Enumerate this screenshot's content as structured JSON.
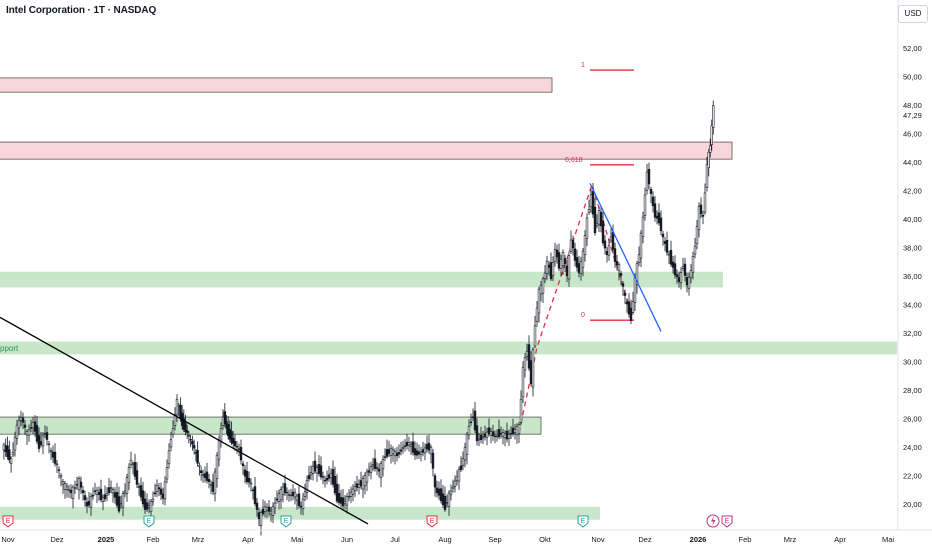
{
  "header": {
    "title": "Intel Corporation · 1T · NASDAQ",
    "currency": "USD"
  },
  "colors": {
    "resistance_fill": "#f9d6da",
    "resistance_stroke": "#555555",
    "support_fill": "#c8e6c9",
    "candle": "#131722",
    "fib_red": "#e0313e",
    "downtrend_blue": "#2962ff",
    "trendline": "#000000",
    "support_text": "#2e8b57",
    "earnings_red": "#e0313e",
    "earnings_green": "#26a69a",
    "dividend_purple": "#c13584"
  },
  "chart_data": {
    "type": "candlestick",
    "title": "Intel Corporation · 1T · NASDAQ",
    "y_axis": {
      "ticks": [
        "20,00",
        "22,00",
        "24,00",
        "26,00",
        "28,00",
        "30,00",
        "32,00",
        "34,00",
        "36,00",
        "38,00",
        "40,00",
        "42,00",
        "44,00",
        "46,00",
        "48,00",
        "50,00",
        "52,00"
      ],
      "last_price_label": "47,29",
      "range": [
        19.0,
        54.0
      ]
    },
    "x_axis": {
      "ticks": [
        "Nov",
        "Dez",
        "2025",
        "Feb",
        "Mrz",
        "Apr",
        "Mai",
        "Jun",
        "Jul",
        "Aug",
        "Sep",
        "Okt",
        "Nov",
        "Dez",
        "2026",
        "Feb",
        "Mrz",
        "Apr",
        "Mai"
      ],
      "tick_x": [
        8,
        57,
        106,
        153,
        198,
        248,
        297,
        347,
        395,
        445,
        495,
        545,
        598,
        645,
        698,
        745,
        790,
        840,
        888
      ],
      "bold": [
        "2025",
        "2026"
      ]
    },
    "zones": [
      {
        "kind": "resistance",
        "x_from": 0,
        "x_to": 552,
        "low": 48.9,
        "high": 49.9
      },
      {
        "kind": "resistance",
        "x_from": 0,
        "x_to": 732,
        "low": 44.2,
        "high": 45.4
      },
      {
        "kind": "support",
        "x_from": 0,
        "x_to": 723,
        "low": 35.2,
        "high": 36.3
      },
      {
        "kind": "support",
        "x_from": 0,
        "x_to": 897,
        "low": 30.5,
        "high": 31.4
      },
      {
        "kind": "support_outlined",
        "x_from": 0,
        "x_to": 541,
        "low": 24.9,
        "high": 26.1
      },
      {
        "kind": "support",
        "x_from": 0,
        "x_to": 600,
        "low": 18.9,
        "high": 19.8
      }
    ],
    "support_label": "pport",
    "fib": {
      "levels": [
        {
          "label": "1",
          "value": 50.45
        },
        {
          "label": "0,618",
          "value": 43.8
        },
        {
          "label": "0",
          "value": 32.9
        }
      ],
      "dashed_path": [
        [
          519,
          25.0
        ],
        [
          537,
          31.0
        ],
        [
          592,
          42.4
        ],
        [
          632,
          33.2
        ]
      ]
    },
    "lines": [
      {
        "name": "long-downtrend",
        "from": [
          0,
          33.1
        ],
        "to": [
          368,
          18.6
        ]
      },
      {
        "name": "short-downtrend",
        "from": [
          590,
          42.5
        ],
        "to": [
          661,
          32.1
        ]
      }
    ],
    "events": [
      {
        "type": "earnings",
        "x": 8,
        "color": "red"
      },
      {
        "type": "earnings",
        "x": 149,
        "color": "green"
      },
      {
        "type": "earnings",
        "x": 286,
        "color": "green"
      },
      {
        "type": "earnings",
        "x": 432,
        "color": "red"
      },
      {
        "type": "earnings",
        "x": 583,
        "color": "green"
      },
      {
        "type": "dividend",
        "x": 713,
        "color": "purple"
      },
      {
        "type": "earnings",
        "x": 727,
        "color": "purple"
      }
    ],
    "price_path": [
      [
        3,
        24.2
      ],
      [
        12,
        23.0
      ],
      [
        18,
        25.5
      ],
      [
        22,
        26.1
      ],
      [
        28,
        24.9
      ],
      [
        34,
        25.7
      ],
      [
        40,
        24.0
      ],
      [
        46,
        25.0
      ],
      [
        52,
        23.6
      ],
      [
        58,
        22.7
      ],
      [
        64,
        21.4
      ],
      [
        72,
        20.8
      ],
      [
        80,
        21.6
      ],
      [
        88,
        19.8
      ],
      [
        96,
        21.0
      ],
      [
        104,
        20.3
      ],
      [
        112,
        21.2
      ],
      [
        120,
        19.7
      ],
      [
        126,
        21.0
      ],
      [
        132,
        23.2
      ],
      [
        138,
        21.5
      ],
      [
        146,
        19.7
      ],
      [
        152,
        20.0
      ],
      [
        158,
        21.3
      ],
      [
        164,
        20.4
      ],
      [
        170,
        23.8
      ],
      [
        174,
        25.4
      ],
      [
        178,
        27.3
      ],
      [
        183,
        25.6
      ],
      [
        188,
        25.0
      ],
      [
        195,
        23.9
      ],
      [
        202,
        22.1
      ],
      [
        208,
        21.8
      ],
      [
        214,
        21.0
      ],
      [
        220,
        24.4
      ],
      [
        224,
        26.2
      ],
      [
        229,
        24.9
      ],
      [
        234,
        24.3
      ],
      [
        240,
        23.8
      ],
      [
        246,
        21.9
      ],
      [
        252,
        21.4
      ],
      [
        256,
        20.2
      ],
      [
        260,
        18.9
      ],
      [
        266,
        19.8
      ],
      [
        272,
        19.4
      ],
      [
        278,
        20.4
      ],
      [
        284,
        21.1
      ],
      [
        290,
        20.6
      ],
      [
        296,
        20.7
      ],
      [
        302,
        19.7
      ],
      [
        308,
        21.6
      ],
      [
        314,
        22.6
      ],
      [
        320,
        22.3
      ],
      [
        326,
        21.6
      ],
      [
        332,
        22.1
      ],
      [
        338,
        20.4
      ],
      [
        344,
        20.0
      ],
      [
        350,
        20.6
      ],
      [
        356,
        21.2
      ],
      [
        362,
        21.4
      ],
      [
        368,
        22.1
      ],
      [
        374,
        22.8
      ],
      [
        380,
        22.3
      ],
      [
        386,
        23.4
      ],
      [
        392,
        23.8
      ],
      [
        398,
        23.4
      ],
      [
        404,
        24.0
      ],
      [
        410,
        24.3
      ],
      [
        416,
        23.5
      ],
      [
        422,
        23.6
      ],
      [
        428,
        24.0
      ],
      [
        432,
        23.8
      ],
      [
        436,
        21.0
      ],
      [
        440,
        20.7
      ],
      [
        446,
        19.8
      ],
      [
        450,
        20.6
      ],
      [
        456,
        21.6
      ],
      [
        462,
        22.6
      ],
      [
        466,
        23.9
      ],
      [
        470,
        25.5
      ],
      [
        474,
        26.2
      ],
      [
        478,
        24.5
      ],
      [
        484,
        24.7
      ],
      [
        490,
        25.1
      ],
      [
        496,
        24.7
      ],
      [
        502,
        25.0
      ],
      [
        508,
        24.7
      ],
      [
        514,
        25.1
      ],
      [
        520,
        25.4
      ],
      [
        524,
        29.6
      ],
      [
        528,
        30.8
      ],
      [
        532,
        28.6
      ],
      [
        536,
        32.7
      ],
      [
        540,
        34.9
      ],
      [
        544,
        35.6
      ],
      [
        548,
        37.0
      ],
      [
        552,
        36.0
      ],
      [
        556,
        37.9
      ],
      [
        560,
        36.7
      ],
      [
        564,
        37.5
      ],
      [
        568,
        36.0
      ],
      [
        572,
        38.7
      ],
      [
        576,
        37.1
      ],
      [
        580,
        36.3
      ],
      [
        584,
        37.6
      ],
      [
        588,
        40.0
      ],
      [
        592,
        41.7
      ],
      [
        596,
        39.2
      ],
      [
        600,
        40.5
      ],
      [
        604,
        38.5
      ],
      [
        608,
        37.4
      ],
      [
        612,
        38.9
      ],
      [
        616,
        37.0
      ],
      [
        620,
        36.6
      ],
      [
        624,
        35.1
      ],
      [
        628,
        33.9
      ],
      [
        632,
        33.0
      ],
      [
        636,
        35.8
      ],
      [
        640,
        37.6
      ],
      [
        644,
        40.1
      ],
      [
        648,
        43.4
      ],
      [
        652,
        41.6
      ],
      [
        656,
        40.2
      ],
      [
        660,
        39.9
      ],
      [
        664,
        38.6
      ],
      [
        668,
        37.8
      ],
      [
        672,
        37.0
      ],
      [
        676,
        36.2
      ],
      [
        680,
        35.6
      ],
      [
        684,
        36.8
      ],
      [
        688,
        35.3
      ],
      [
        692,
        36.4
      ],
      [
        696,
        38.2
      ],
      [
        700,
        40.8
      ],
      [
        704,
        40.1
      ],
      [
        708,
        43.9
      ],
      [
        711,
        45.2
      ],
      [
        714,
        47.9
      ]
    ]
  }
}
